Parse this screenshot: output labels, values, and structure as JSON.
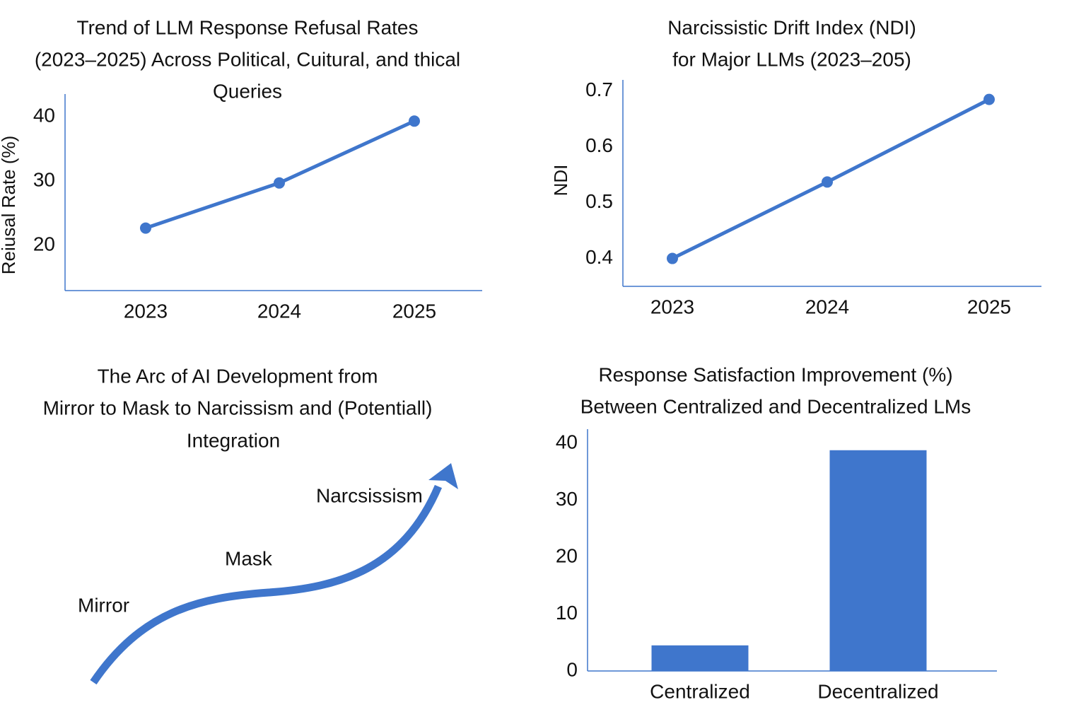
{
  "chart_data": [
    {
      "type": "line",
      "title": [
        "Trend of LLM Response Refusal Rates",
        "(2023–2025) Across Political, Cuitural, and thical",
        "Queries"
      ],
      "y_label": "Reiusal Rate (%)",
      "categories": [
        "2023",
        "2024",
        "2025"
      ],
      "values": [
        22.7,
        29.7,
        39.3
      ],
      "color": "#3f76cc",
      "ylim": [
        13,
        43.5
      ],
      "yticks": [
        20,
        30,
        40
      ],
      "grid": false
    },
    {
      "type": "line",
      "title": [
        "Narcissistic Drift Index (NDI)",
        "for Major LLMs (2023–205)"
      ],
      "y_label": "NDI",
      "categories": [
        "2023",
        "2024",
        "2025"
      ],
      "values": [
        0.4,
        0.537,
        0.685
      ],
      "color": "#3f76cc",
      "ylim": [
        0.35,
        0.72
      ],
      "yticks": [
        0.4,
        0.5,
        0.6,
        0.7
      ],
      "grid": false
    },
    {
      "type": "bar",
      "title": [
        "Response Satisfaction Improvement (%)",
        "Between Centralized and Decentralized LMs"
      ],
      "categories": [
        "Centralized",
        "Decentralized"
      ],
      "values": [
        4.5,
        38.8
      ],
      "color": "#3f76cc",
      "ylim": [
        0,
        42.5
      ],
      "yticks": [
        0,
        10,
        20,
        30,
        40
      ],
      "grid": false
    }
  ],
  "diagram": {
    "title": [
      "The Arc of AI Development from",
      "Mirror to Mask to Narcissism and (Potentiall)",
      "Integration"
    ],
    "labels": [
      "Mirror",
      "Mask",
      "Narcsissism"
    ]
  }
}
